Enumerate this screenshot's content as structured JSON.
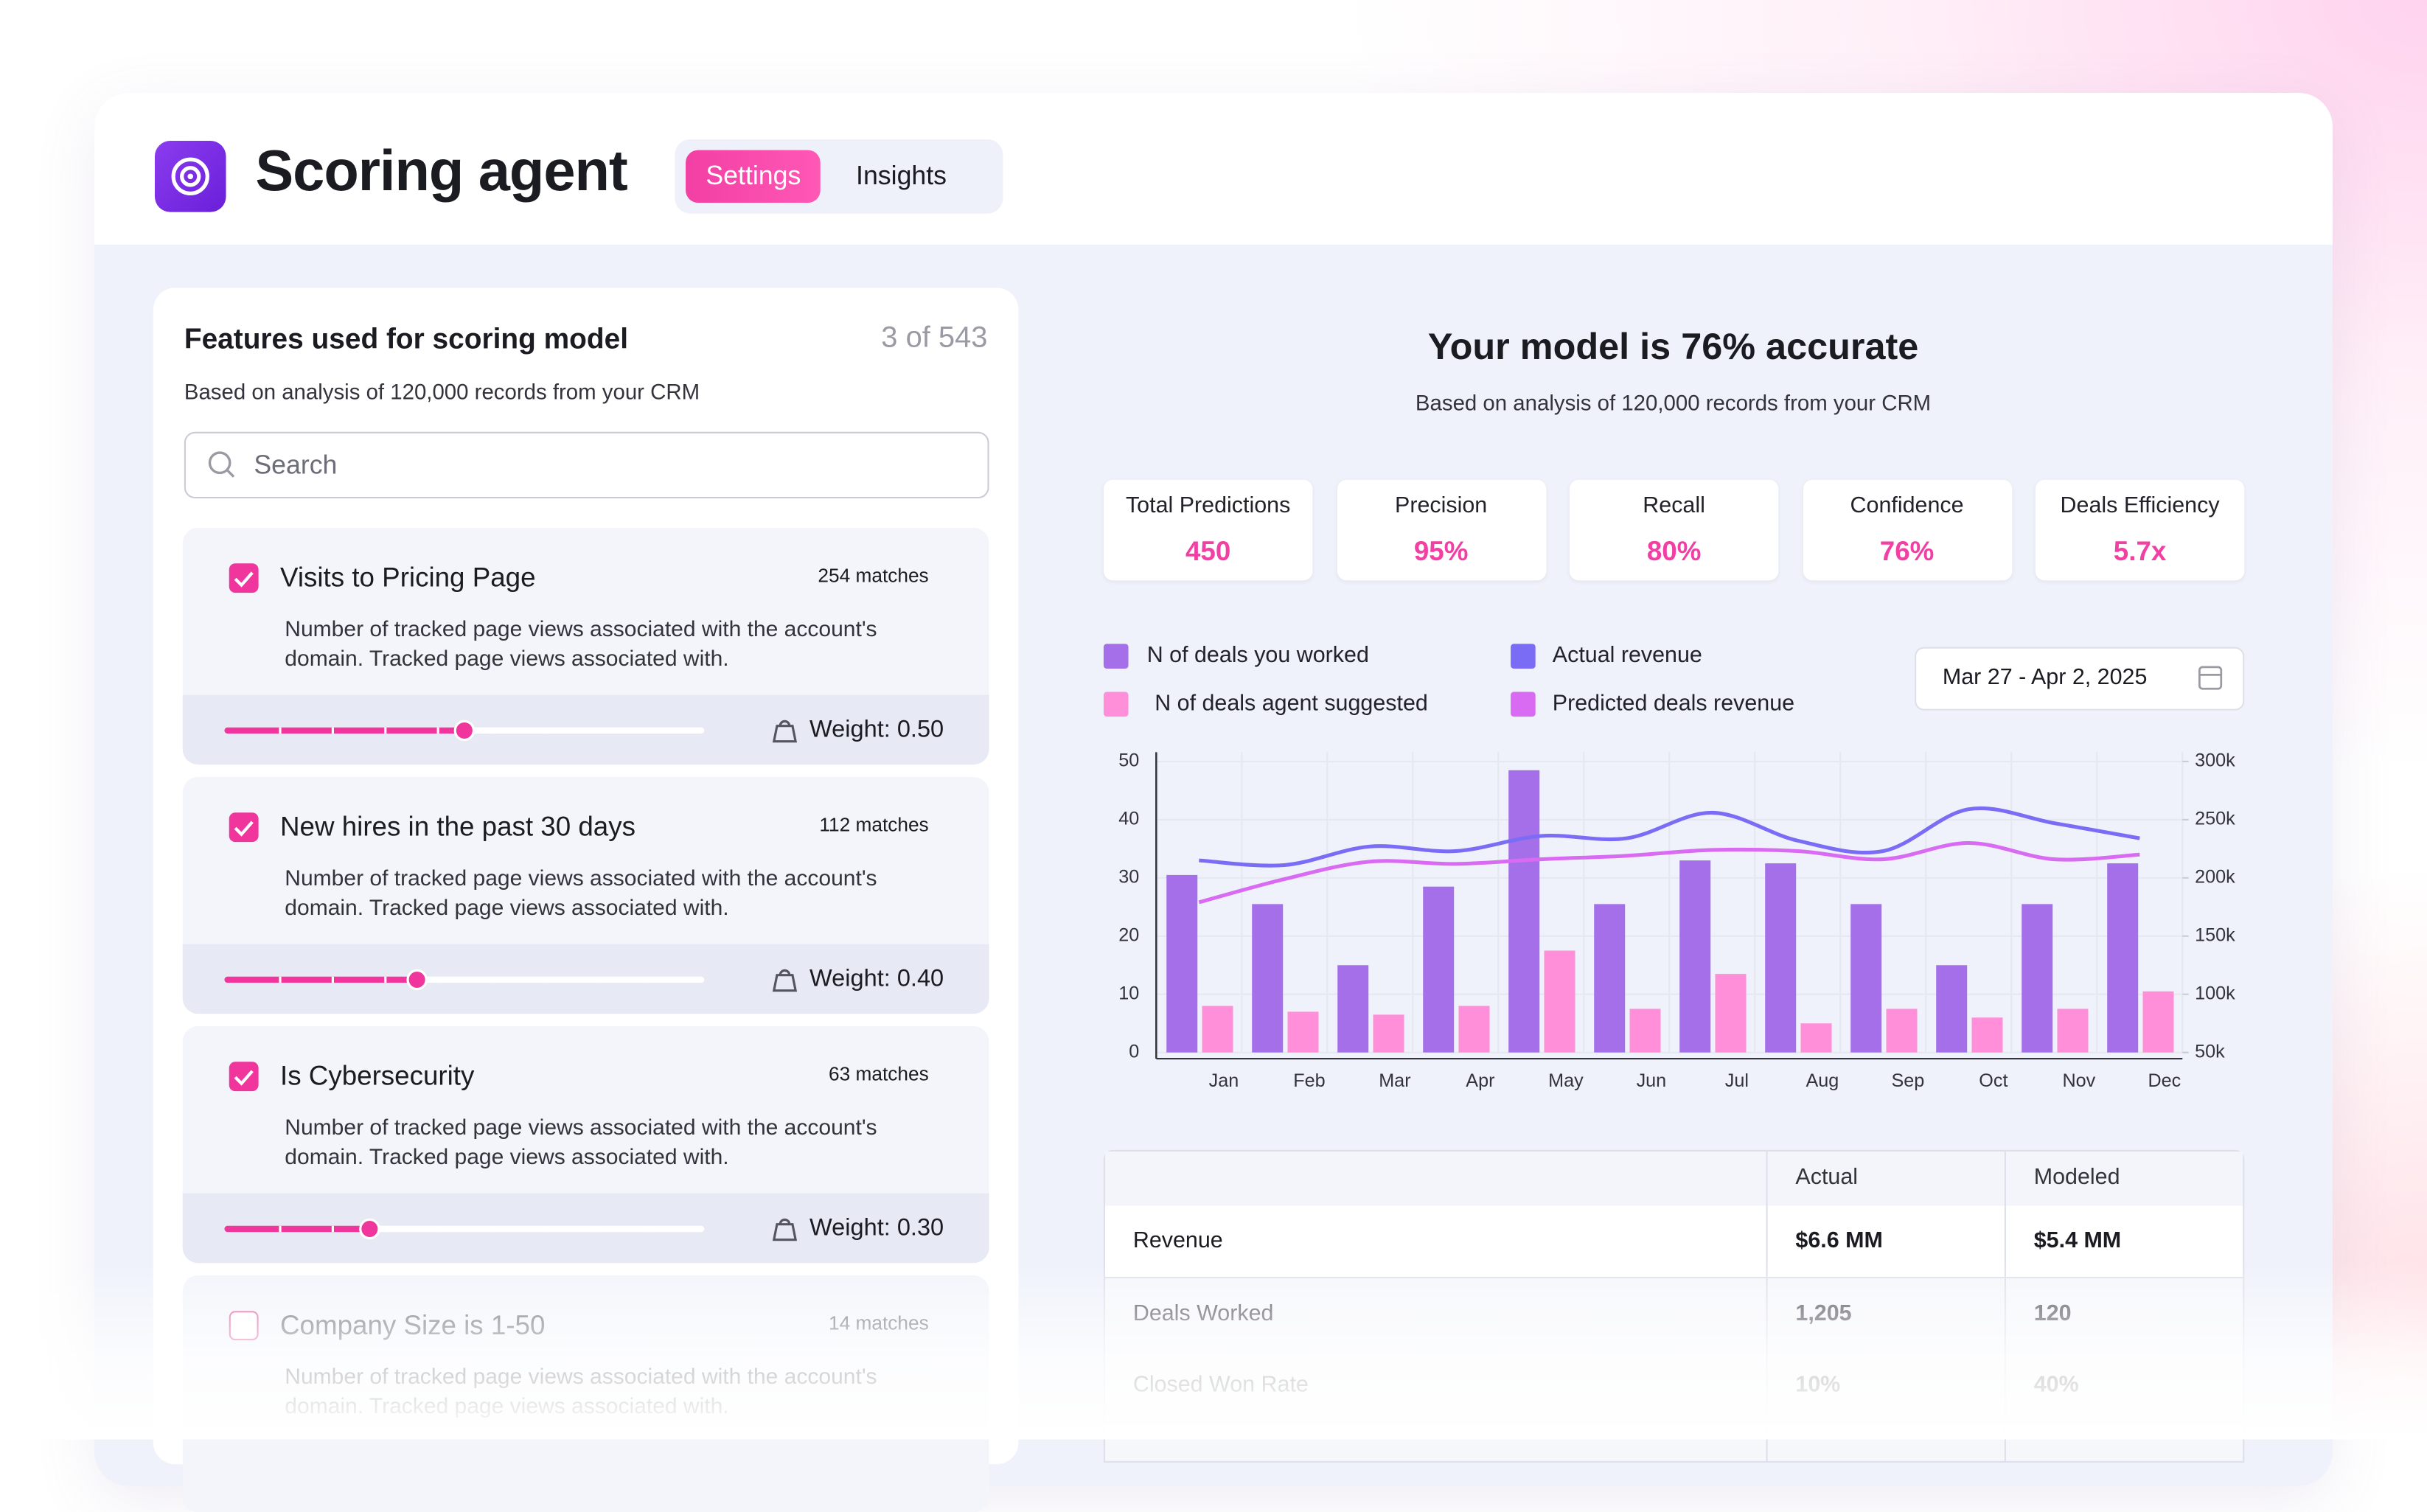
{
  "header": {
    "title": "Scoring agent",
    "tabs": [
      "Settings",
      "Insights"
    ],
    "active_tab": 0
  },
  "features": {
    "title": "Features used for scoring model",
    "count": "3 of 543",
    "subtitle": "Based on analysis of 120,000 records from your CRM",
    "search_placeholder": "Search",
    "items": [
      {
        "name": "Visits to Pricing Page",
        "matches": "254 matches",
        "description": "Number of tracked page views associated with the account's domain. Tracked page views associated with.",
        "checked": true,
        "weight": 0.5,
        "weight_label": "Weight: 0.50"
      },
      {
        "name": "New hires in the past 30 days",
        "matches": "112 matches",
        "description": "Number of tracked page views associated with the account's domain. Tracked page views associated with.",
        "checked": true,
        "weight": 0.4,
        "weight_label": "Weight: 0.40"
      },
      {
        "name": "Is Cybersecurity",
        "matches": "63 matches",
        "description": "Number of tracked page views associated with the account's domain. Tracked page views associated with.",
        "checked": true,
        "weight": 0.3,
        "weight_label": "Weight: 0.30"
      },
      {
        "name": "Company Size is 1-50",
        "matches": "14 matches",
        "description": "Number of tracked page views associated with the account's domain. Tracked page views associated with.",
        "checked": false
      }
    ]
  },
  "model": {
    "title": "Your model is 76% accurate",
    "subtitle": "Based on analysis of 120,000 records from your CRM",
    "stats": [
      {
        "label": "Total Predictions",
        "value": "450"
      },
      {
        "label": "Precision",
        "value": "95%"
      },
      {
        "label": "Recall",
        "value": "80%"
      },
      {
        "label": "Confidence",
        "value": "76%"
      },
      {
        "label": "Deals Efficiency",
        "value": "5.7x"
      }
    ],
    "date_range": "Mar 27 - Apr 2, 2025"
  },
  "chart_data": {
    "type": "bar-line",
    "categories": [
      "Jan",
      "Feb",
      "Mar",
      "Apr",
      "May",
      "Jun",
      "Jul",
      "Aug",
      "Sep",
      "Oct",
      "Nov",
      "Dec"
    ],
    "series": [
      {
        "name": "N of deals you worked",
        "type": "bar",
        "color": "#a46fe8",
        "values": [
          30.5,
          25.5,
          15,
          28.5,
          48.5,
          25.5,
          33,
          32.5,
          25.5,
          15,
          25.5,
          32.5
        ]
      },
      {
        "name": "N of deals agent suggested",
        "type": "bar",
        "color": "#ff8fd8",
        "values": [
          8,
          7,
          6.5,
          8,
          17.5,
          7.5,
          13.5,
          5,
          7.5,
          6,
          7.5,
          10.5
        ]
      },
      {
        "name": "Actual revenue",
        "type": "line",
        "axis": "y2",
        "color": "#7b6cf6",
        "values": [
          215000,
          211000,
          227000,
          223000,
          236000,
          234000,
          256000,
          232000,
          223000,
          259000,
          247000,
          234000
        ]
      },
      {
        "name": "Predicted deals revenue",
        "type": "line",
        "axis": "y2",
        "color": "#d96bf2",
        "values": [
          179000,
          199000,
          214000,
          212000,
          216000,
          219000,
          224000,
          223000,
          216000,
          230000,
          216000,
          220000
        ]
      }
    ],
    "ylim": [
      0,
      50
    ],
    "yticks": [
      0,
      10,
      20,
      30,
      40,
      50
    ],
    "y2lim": [
      50000,
      300000
    ],
    "y2ticks": [
      {
        "value": 50000,
        "label": "50k"
      },
      {
        "value": 100000,
        "label": "100k"
      },
      {
        "value": 150000,
        "label": "150k"
      },
      {
        "value": 200000,
        "label": "200k"
      },
      {
        "value": 250000,
        "label": "250k"
      },
      {
        "value": 300000,
        "label": "300k"
      }
    ],
    "grid": true
  },
  "table": {
    "columns": [
      "Actual",
      "Modeled"
    ],
    "rows": [
      [
        "Revenue",
        "$6.6 MM",
        "$5.4 MM"
      ],
      [
        "Deals Worked",
        "1,205",
        "120"
      ],
      [
        "Closed Won Rate",
        "10%",
        "40%"
      ]
    ]
  }
}
